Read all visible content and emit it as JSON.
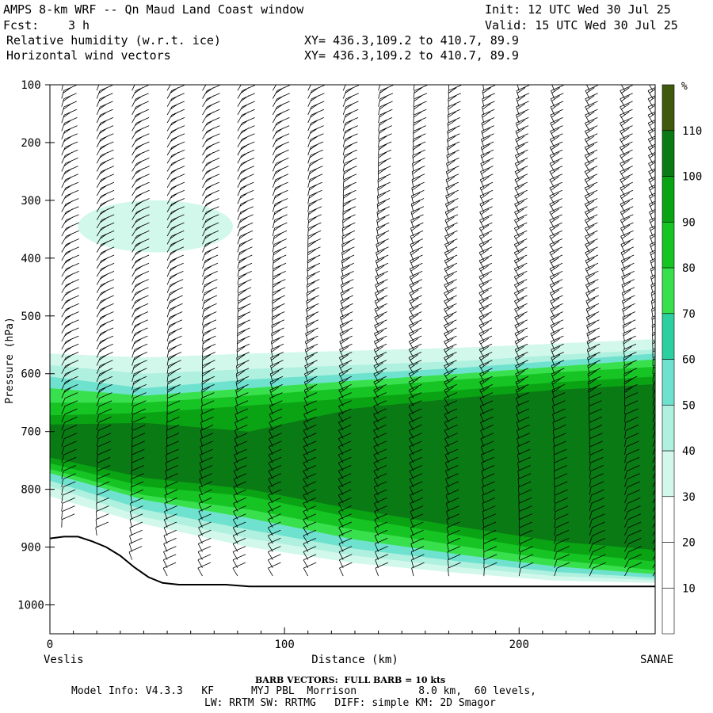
{
  "header": {
    "title": "AMPS 8-km WRF -- Qn Maud Land Coast window",
    "init": "Init: 12 UTC Wed 30 Jul 25",
    "fcst_label": "Fcst:",
    "fcst_value": "3 h",
    "valid": "Valid: 15 UTC Wed 30 Jul 25",
    "field1": "Relative humidity (w.r.t. ice)",
    "field2": "Horizontal wind vectors",
    "xy1": "XY= 436.3,109.2 to 410.7, 89.9",
    "xy2": "XY= 436.3,109.2 to 410.7, 89.9"
  },
  "footer": {
    "barb_note": "BARB VECTORS:  FULL BARB = 10 kts",
    "model_info": "Model Info: V4.3.3   KF      MYJ PBL  Morrison          8.0 km,  60 levels,",
    "physics": "LW: RRTM SW: RRTMG   DIFF: simple KM: 2D Smagor"
  },
  "colors": {
    "land": "#000000",
    "barbs": "#000000",
    "rh_levels": [
      "#ffffff",
      "#ffffff",
      "#ffffff",
      "#d2f8ec",
      "#b0f0df",
      "#6fe2cf",
      "#2cd0a0",
      "#39e04d",
      "#16c424",
      "#0aa314",
      "#0a7a14",
      "#3f5a0c",
      "#c62a00"
    ]
  },
  "chart_data": {
    "type": "heatmap",
    "title": "Relative humidity (w.r.t. ice)",
    "xlabel": "Distance (km)",
    "ylabel": "Pressure (hPa)",
    "x_ticks": [
      0,
      100,
      200
    ],
    "y_ticks": [
      100,
      200,
      300,
      400,
      500,
      600,
      700,
      800,
      900,
      1000
    ],
    "xlim": [
      0,
      258
    ],
    "ylim": [
      1050,
      100
    ],
    "y_axis_inverted": true,
    "left_end_label": "Veslis",
    "right_end_label": "SANAE",
    "colorbar": {
      "unit": "%",
      "ticks": [
        10,
        20,
        30,
        40,
        50,
        60,
        70,
        80,
        90,
        100,
        110
      ],
      "levels": [
        0,
        10,
        20,
        30,
        40,
        50,
        60,
        70,
        80,
        90,
        100,
        110,
        120
      ]
    },
    "rh_layers": [
      {
        "min_rh": 30,
        "top_hpa": [
          565,
          572,
          565,
          560,
          555,
          548,
          540
        ],
        "bottom_hpa": [
          812,
          860,
          900,
          928,
          945,
          958,
          962
        ]
      },
      {
        "min_rh": 40,
        "top_hpa": [
          585,
          600,
          592,
          585,
          578,
          568,
          558
        ],
        "bottom_hpa": [
          795,
          848,
          885,
          915,
          935,
          950,
          957
        ]
      },
      {
        "min_rh": 50,
        "top_hpa": [
          605,
          625,
          610,
          600,
          590,
          578,
          565
        ],
        "bottom_hpa": [
          785,
          835,
          870,
          903,
          925,
          943,
          953
        ]
      },
      {
        "min_rh": 70,
        "top_hpa": [
          625,
          638,
          625,
          612,
          600,
          588,
          575
        ],
        "bottom_hpa": [
          772,
          818,
          850,
          887,
          913,
          933,
          947
        ]
      },
      {
        "min_rh": 80,
        "top_hpa": [
          650,
          650,
          638,
          624,
          610,
          598,
          588
        ],
        "bottom_hpa": [
          765,
          810,
          835,
          870,
          898,
          922,
          940
        ]
      },
      {
        "min_rh": 90,
        "top_hpa": [
          672,
          668,
          655,
          642,
          628,
          615,
          605
        ],
        "bottom_hpa": [
          755,
          795,
          812,
          850,
          880,
          908,
          925
        ]
      },
      {
        "min_rh": 100,
        "top_hpa": [
          688,
          685,
          700,
          660,
          642,
          628,
          618
        ],
        "bottom_hpa": [
          745,
          780,
          800,
          835,
          865,
          890,
          905
        ]
      }
    ],
    "rh_layers_x_km": [
      0,
      40,
      85,
      130,
      175,
      215,
      258
    ],
    "moist_patch_upper": {
      "min_rh": 30,
      "center_km": 45,
      "center_hpa": 345,
      "half_width_km": 33,
      "half_depth_hpa": 45
    },
    "terrain_hpa": {
      "x_km": [
        0,
        6,
        12,
        18,
        24,
        30,
        36,
        42,
        48,
        55,
        65,
        75,
        85,
        100,
        140,
        200,
        258
      ],
      "p": [
        885,
        882,
        882,
        890,
        900,
        915,
        935,
        952,
        962,
        965,
        965,
        965,
        968,
        968,
        968,
        968,
        968
      ]
    },
    "wind_barb_columns_km": [
      5,
      20,
      35,
      50,
      65,
      80,
      95,
      110,
      125,
      140,
      155,
      170,
      185,
      200,
      215,
      230,
      245,
      257
    ]
  }
}
